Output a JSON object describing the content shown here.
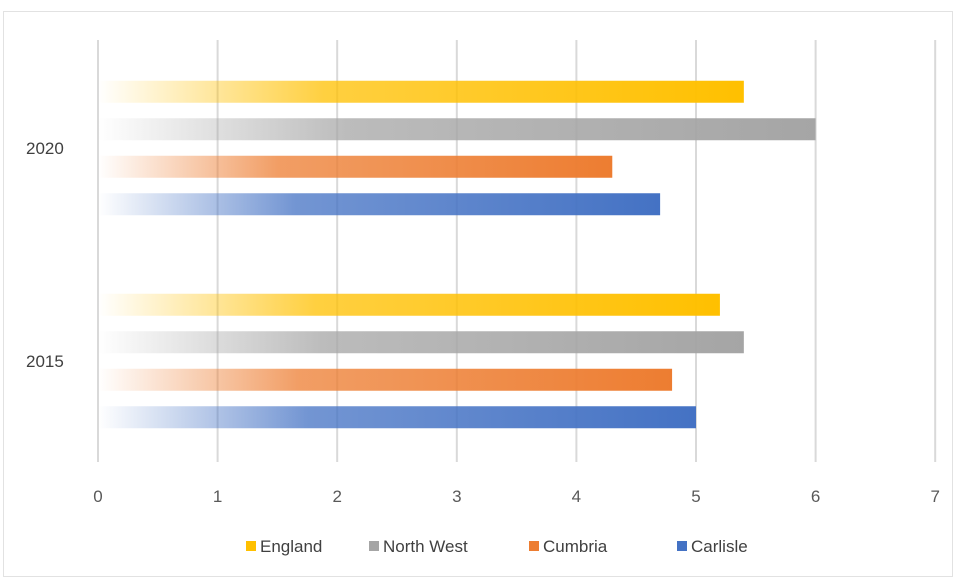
{
  "chart_data": {
    "type": "bar",
    "orientation": "horizontal",
    "categories": [
      "2015",
      "2020"
    ],
    "series": [
      {
        "name": "England",
        "color": "#FFC000",
        "values": [
          5.2,
          5.4
        ]
      },
      {
        "name": "North West",
        "color": "#A5A5A5",
        "values": [
          5.4,
          6.0
        ]
      },
      {
        "name": "Cumbria",
        "color": "#ED7D31",
        "values": [
          4.8,
          4.3
        ]
      },
      {
        "name": "Carlisle",
        "color": "#4472C4",
        "values": [
          5.0,
          4.7
        ]
      }
    ],
    "xlim": [
      0,
      7
    ],
    "xticks": [
      "0",
      "1",
      "2",
      "3",
      "4",
      "5",
      "6",
      "7"
    ],
    "grid": "vertical",
    "legend_position": "bottom",
    "bar_style": "gradient-fade-left"
  }
}
